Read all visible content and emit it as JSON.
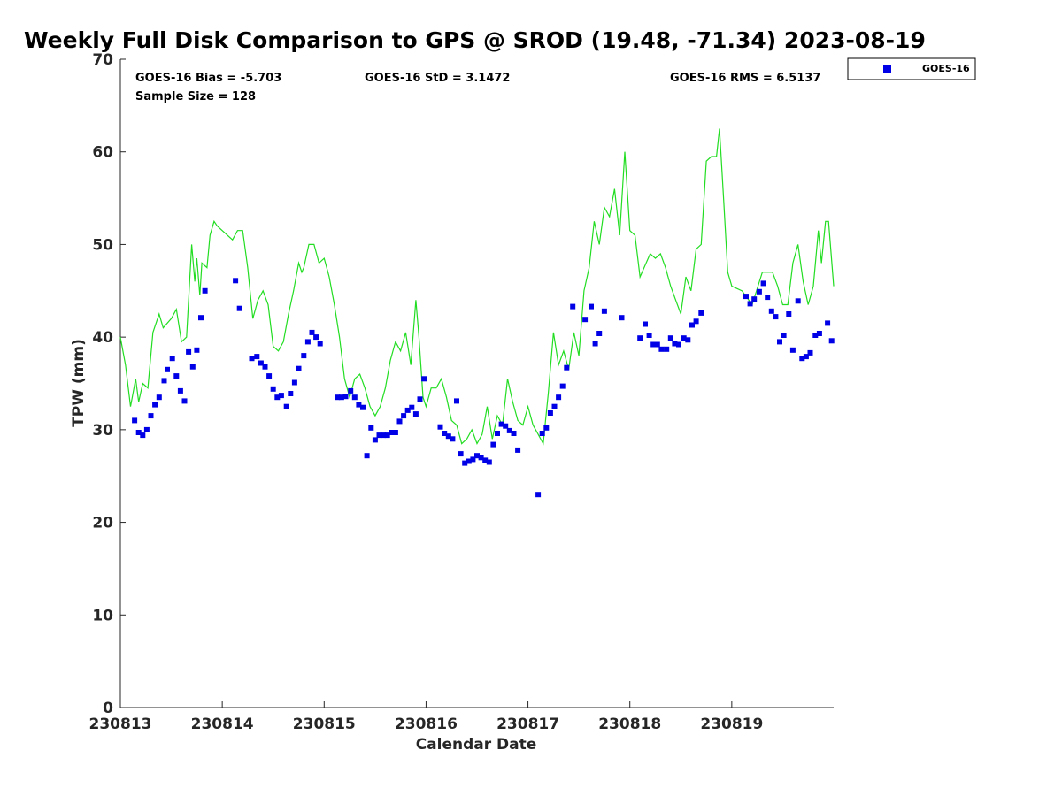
{
  "chart_data": {
    "type": "scatter",
    "title": "Weekly Full Disk Comparison to GPS @ SROD (19.48, -71.34) 2023-08-19",
    "xlabel": "Calendar Date",
    "ylabel": "TPW (mm)",
    "xlim": [
      0,
      7
    ],
    "ylim": [
      0,
      70
    ],
    "x_ticks": [
      {
        "value": 0,
        "label": "230813"
      },
      {
        "value": 1,
        "label": "230814"
      },
      {
        "value": 2,
        "label": "230815"
      },
      {
        "value": 3,
        "label": "230816"
      },
      {
        "value": 4,
        "label": "230817"
      },
      {
        "value": 5,
        "label": "230818"
      },
      {
        "value": 6,
        "label": "230819"
      }
    ],
    "y_ticks": [
      0,
      10,
      20,
      30,
      40,
      50,
      60,
      70
    ],
    "stats": {
      "bias": "GOES-16 Bias = -5.703",
      "std": "GOES-16 StD = 3.1472",
      "rms": "GOES-16 RMS = 6.5137",
      "sample": "Sample Size = 128"
    },
    "legend": {
      "label": "GOES-16",
      "position": "top-right",
      "color": "#0000e6"
    },
    "series": [
      {
        "name": "GPS",
        "style": "line",
        "color": "#22dd22",
        "points": [
          [
            0.0,
            40.0
          ],
          [
            0.05,
            37.0
          ],
          [
            0.1,
            32.5
          ],
          [
            0.15,
            35.5
          ],
          [
            0.18,
            33.0
          ],
          [
            0.22,
            35.0
          ],
          [
            0.27,
            34.5
          ],
          [
            0.32,
            40.5
          ],
          [
            0.38,
            42.5
          ],
          [
            0.42,
            41.0
          ],
          [
            0.5,
            42.0
          ],
          [
            0.55,
            43.0
          ],
          [
            0.6,
            39.5
          ],
          [
            0.65,
            40.0
          ],
          [
            0.7,
            50.0
          ],
          [
            0.73,
            46.0
          ],
          [
            0.75,
            48.5
          ],
          [
            0.78,
            44.5
          ],
          [
            0.8,
            48.0
          ],
          [
            0.85,
            47.5
          ],
          [
            0.88,
            51.0
          ],
          [
            0.92,
            52.5
          ],
          [
            0.95,
            52.0
          ],
          [
            1.0,
            51.5
          ],
          [
            1.1,
            50.5
          ],
          [
            1.15,
            51.5
          ],
          [
            1.2,
            51.5
          ],
          [
            1.25,
            47.5
          ],
          [
            1.3,
            42.0
          ],
          [
            1.35,
            44.0
          ],
          [
            1.4,
            45.0
          ],
          [
            1.45,
            43.5
          ],
          [
            1.5,
            39.0
          ],
          [
            1.55,
            38.5
          ],
          [
            1.6,
            39.5
          ],
          [
            1.65,
            42.5
          ],
          [
            1.7,
            45.0
          ],
          [
            1.75,
            48.0
          ],
          [
            1.78,
            47.0
          ],
          [
            1.8,
            47.5
          ],
          [
            1.85,
            50.0
          ],
          [
            1.9,
            50.0
          ],
          [
            1.95,
            48.0
          ],
          [
            2.0,
            48.5
          ],
          [
            2.05,
            46.5
          ],
          [
            2.1,
            43.5
          ],
          [
            2.15,
            40.0
          ],
          [
            2.2,
            35.5
          ],
          [
            2.25,
            33.5
          ],
          [
            2.3,
            35.5
          ],
          [
            2.35,
            36.0
          ],
          [
            2.4,
            34.5
          ],
          [
            2.45,
            32.5
          ],
          [
            2.5,
            31.5
          ],
          [
            2.55,
            32.5
          ],
          [
            2.6,
            34.5
          ],
          [
            2.65,
            37.5
          ],
          [
            2.7,
            39.5
          ],
          [
            2.75,
            38.5
          ],
          [
            2.8,
            40.5
          ],
          [
            2.85,
            37.0
          ],
          [
            2.9,
            44.0
          ],
          [
            2.93,
            40.0
          ],
          [
            2.97,
            33.5
          ],
          [
            3.0,
            32.5
          ],
          [
            3.05,
            34.5
          ],
          [
            3.1,
            34.5
          ],
          [
            3.15,
            35.5
          ],
          [
            3.2,
            33.5
          ],
          [
            3.25,
            31.0
          ],
          [
            3.3,
            30.5
          ],
          [
            3.35,
            28.5
          ],
          [
            3.4,
            29.0
          ],
          [
            3.45,
            30.0
          ],
          [
            3.5,
            28.5
          ],
          [
            3.55,
            29.5
          ],
          [
            3.6,
            32.5
          ],
          [
            3.65,
            29.0
          ],
          [
            3.7,
            31.5
          ],
          [
            3.75,
            30.5
          ],
          [
            3.8,
            35.5
          ],
          [
            3.85,
            33.0
          ],
          [
            3.9,
            31.0
          ],
          [
            3.95,
            30.5
          ],
          [
            4.0,
            32.5
          ],
          [
            4.05,
            30.5
          ],
          [
            4.1,
            29.5
          ],
          [
            4.15,
            28.5
          ],
          [
            4.2,
            34.0
          ],
          [
            4.25,
            40.5
          ],
          [
            4.3,
            37.0
          ],
          [
            4.35,
            38.5
          ],
          [
            4.4,
            36.5
          ],
          [
            4.45,
            40.5
          ],
          [
            4.5,
            38.0
          ],
          [
            4.55,
            45.0
          ],
          [
            4.6,
            47.5
          ],
          [
            4.65,
            52.5
          ],
          [
            4.7,
            50.0
          ],
          [
            4.75,
            54.0
          ],
          [
            4.8,
            53.0
          ],
          [
            4.85,
            56.0
          ],
          [
            4.9,
            51.0
          ],
          [
            4.95,
            60.0
          ],
          [
            5.0,
            51.5
          ],
          [
            5.05,
            51.0
          ],
          [
            5.1,
            46.5
          ],
          [
            5.2,
            49.0
          ],
          [
            5.25,
            48.5
          ],
          [
            5.3,
            49.0
          ],
          [
            5.35,
            47.5
          ],
          [
            5.4,
            45.5
          ],
          [
            5.45,
            44.0
          ],
          [
            5.5,
            42.5
          ],
          [
            5.55,
            46.5
          ],
          [
            5.6,
            45.0
          ],
          [
            5.65,
            49.5
          ],
          [
            5.7,
            50.0
          ],
          [
            5.75,
            59.0
          ],
          [
            5.8,
            59.5
          ],
          [
            5.85,
            59.5
          ],
          [
            5.88,
            62.5
          ],
          [
            5.92,
            55.0
          ],
          [
            5.96,
            47.0
          ],
          [
            6.0,
            45.5
          ],
          [
            6.1,
            45.0
          ],
          [
            6.2,
            43.5
          ],
          [
            6.3,
            47.0
          ],
          [
            6.4,
            47.0
          ],
          [
            6.45,
            45.5
          ],
          [
            6.5,
            43.5
          ],
          [
            6.55,
            43.5
          ],
          [
            6.6,
            48.0
          ],
          [
            6.65,
            50.0
          ],
          [
            6.7,
            46.0
          ],
          [
            6.75,
            43.5
          ],
          [
            6.8,
            45.5
          ],
          [
            6.85,
            51.5
          ],
          [
            6.88,
            48.0
          ],
          [
            6.92,
            52.5
          ],
          [
            6.95,
            52.5
          ],
          [
            7.0,
            45.5
          ]
        ]
      },
      {
        "name": "GOES-16",
        "style": "markers",
        "color": "#0000e6",
        "points": [
          [
            0.14,
            31.0
          ],
          [
            0.18,
            29.7
          ],
          [
            0.22,
            29.4
          ],
          [
            0.26,
            30.0
          ],
          [
            0.3,
            31.5
          ],
          [
            0.34,
            32.7
          ],
          [
            0.38,
            33.5
          ],
          [
            0.43,
            35.3
          ],
          [
            0.46,
            36.5
          ],
          [
            0.51,
            37.7
          ],
          [
            0.55,
            35.8
          ],
          [
            0.59,
            34.2
          ],
          [
            0.63,
            33.1
          ],
          [
            0.67,
            38.4
          ],
          [
            0.71,
            36.8
          ],
          [
            0.75,
            38.6
          ],
          [
            0.79,
            42.1
          ],
          [
            0.83,
            45.0
          ],
          [
            1.13,
            46.1
          ],
          [
            1.17,
            43.1
          ],
          [
            1.29,
            37.7
          ],
          [
            1.34,
            37.9
          ],
          [
            1.38,
            37.2
          ],
          [
            1.42,
            36.8
          ],
          [
            1.46,
            35.8
          ],
          [
            1.5,
            34.4
          ],
          [
            1.54,
            33.5
          ],
          [
            1.58,
            33.7
          ],
          [
            1.63,
            32.5
          ],
          [
            1.67,
            33.9
          ],
          [
            1.71,
            35.1
          ],
          [
            1.75,
            36.6
          ],
          [
            1.8,
            38.0
          ],
          [
            1.84,
            39.5
          ],
          [
            1.88,
            40.5
          ],
          [
            1.92,
            40.0
          ],
          [
            1.96,
            39.3
          ],
          [
            2.13,
            33.5
          ],
          [
            2.17,
            33.5
          ],
          [
            2.21,
            33.6
          ],
          [
            2.26,
            34.2
          ],
          [
            2.3,
            33.5
          ],
          [
            2.34,
            32.7
          ],
          [
            2.38,
            32.4
          ],
          [
            2.42,
            27.2
          ],
          [
            2.46,
            30.2
          ],
          [
            2.5,
            28.9
          ],
          [
            2.54,
            29.4
          ],
          [
            2.58,
            29.4
          ],
          [
            2.62,
            29.4
          ],
          [
            2.66,
            29.7
          ],
          [
            2.7,
            29.7
          ],
          [
            2.74,
            30.9
          ],
          [
            2.78,
            31.5
          ],
          [
            2.82,
            32.1
          ],
          [
            2.86,
            32.4
          ],
          [
            2.9,
            31.7
          ],
          [
            2.94,
            33.3
          ],
          [
            2.98,
            35.5
          ],
          [
            3.14,
            30.3
          ],
          [
            3.18,
            29.6
          ],
          [
            3.22,
            29.3
          ],
          [
            3.26,
            29.0
          ],
          [
            3.3,
            33.1
          ],
          [
            3.34,
            27.4
          ],
          [
            3.38,
            26.4
          ],
          [
            3.42,
            26.6
          ],
          [
            3.46,
            26.8
          ],
          [
            3.5,
            27.2
          ],
          [
            3.54,
            27.0
          ],
          [
            3.58,
            26.7
          ],
          [
            3.62,
            26.5
          ],
          [
            3.66,
            28.4
          ],
          [
            3.7,
            29.6
          ],
          [
            3.74,
            30.6
          ],
          [
            3.78,
            30.4
          ],
          [
            3.82,
            29.9
          ],
          [
            3.86,
            29.6
          ],
          [
            3.9,
            27.8
          ],
          [
            4.1,
            23.0
          ],
          [
            4.14,
            29.6
          ],
          [
            4.18,
            30.2
          ],
          [
            4.22,
            31.8
          ],
          [
            4.26,
            32.5
          ],
          [
            4.3,
            33.5
          ],
          [
            4.34,
            34.7
          ],
          [
            4.38,
            36.7
          ],
          [
            4.44,
            43.3
          ],
          [
            4.56,
            41.9
          ],
          [
            4.62,
            43.3
          ],
          [
            4.66,
            39.3
          ],
          [
            4.7,
            40.4
          ],
          [
            4.75,
            42.8
          ],
          [
            4.92,
            42.1
          ],
          [
            5.1,
            39.9
          ],
          [
            5.15,
            41.4
          ],
          [
            5.19,
            40.2
          ],
          [
            5.23,
            39.2
          ],
          [
            5.27,
            39.2
          ],
          [
            5.31,
            38.7
          ],
          [
            5.36,
            38.7
          ],
          [
            5.4,
            39.9
          ],
          [
            5.44,
            39.3
          ],
          [
            5.48,
            39.2
          ],
          [
            5.53,
            39.9
          ],
          [
            5.57,
            39.7
          ],
          [
            5.61,
            41.3
          ],
          [
            5.65,
            41.7
          ],
          [
            5.7,
            42.6
          ],
          [
            6.14,
            44.4
          ],
          [
            6.18,
            43.6
          ],
          [
            6.22,
            44.1
          ],
          [
            6.27,
            44.9
          ],
          [
            6.31,
            45.8
          ],
          [
            6.35,
            44.3
          ],
          [
            6.39,
            42.8
          ],
          [
            6.43,
            42.2
          ],
          [
            6.47,
            39.5
          ],
          [
            6.51,
            40.2
          ],
          [
            6.56,
            42.5
          ],
          [
            6.6,
            38.6
          ],
          [
            6.65,
            43.9
          ],
          [
            6.69,
            37.7
          ],
          [
            6.73,
            37.9
          ],
          [
            6.77,
            38.3
          ],
          [
            6.82,
            40.2
          ],
          [
            6.86,
            40.4
          ],
          [
            6.94,
            41.5
          ],
          [
            6.98,
            39.6
          ]
        ]
      }
    ]
  }
}
